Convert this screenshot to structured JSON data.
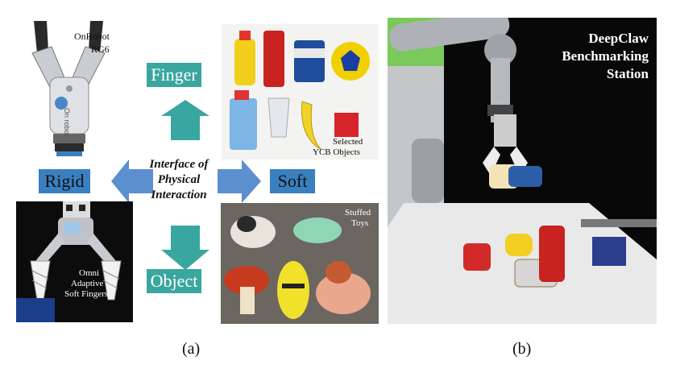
{
  "panel_a": {
    "gripper_rigid_label_line1": "OnRobot",
    "gripper_rigid_label_line2": "RG6",
    "gripper_brand_text": "On robot",
    "axis_top": "Finger",
    "axis_left": "Rigid",
    "axis_right": "Soft",
    "axis_bottom": "Object",
    "center_line1": "Interface of",
    "center_line2": "Physical",
    "center_line3": "Interaction",
    "ycb_label_line1": "Selected",
    "ycb_label_line2": "YCB Objects",
    "toys_label_line1": "Stuffed",
    "toys_label_line2": "Toys",
    "soft_finger_label_line1": "Omni",
    "soft_finger_label_line2": "Adaptive",
    "soft_finger_label_line3": "Soft Fingers",
    "caption": "(a)"
  },
  "panel_b": {
    "title_line1": "DeepClaw",
    "title_line2": "Benchmarking",
    "title_line3": "Station",
    "caption": "(b)"
  },
  "colors": {
    "axis_box": "#3a7fc0",
    "arrow_teal": "#3aa6a0",
    "arrow_blue": "#5b8fd0"
  }
}
